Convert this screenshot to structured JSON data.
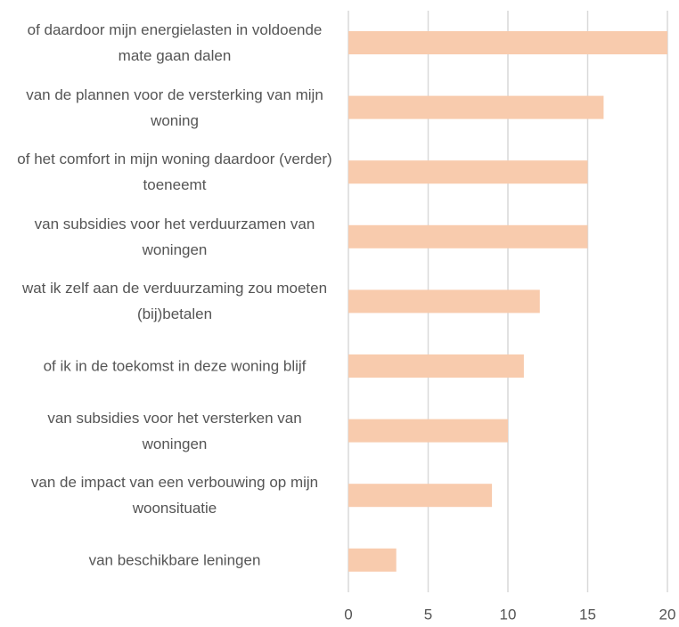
{
  "chart_data": {
    "type": "bar",
    "orientation": "horizontal",
    "categories": [
      "of daardoor mijn energielasten in voldoende mate gaan dalen",
      "van de plannen voor de versterking van mijn woning",
      "of het comfort in mijn woning daardoor (verder) toeneemt",
      "van subsidies voor het verduurzamen van woningen",
      "wat ik zelf aan de verduurzaming zou moeten (bij)betalen",
      "of ik in de toekomst in deze woning blijf",
      "van subsidies voor het versterken van woningen",
      "van de impact van een verbouwing op mijn woonsituatie",
      "van beschikbare leningen"
    ],
    "values": [
      20,
      16,
      15,
      15,
      12,
      11,
      10,
      9,
      3
    ],
    "color": "#f8cbad",
    "xlim": [
      0,
      20
    ],
    "xticks": [
      0,
      5,
      10,
      15,
      20
    ],
    "grid": true
  }
}
